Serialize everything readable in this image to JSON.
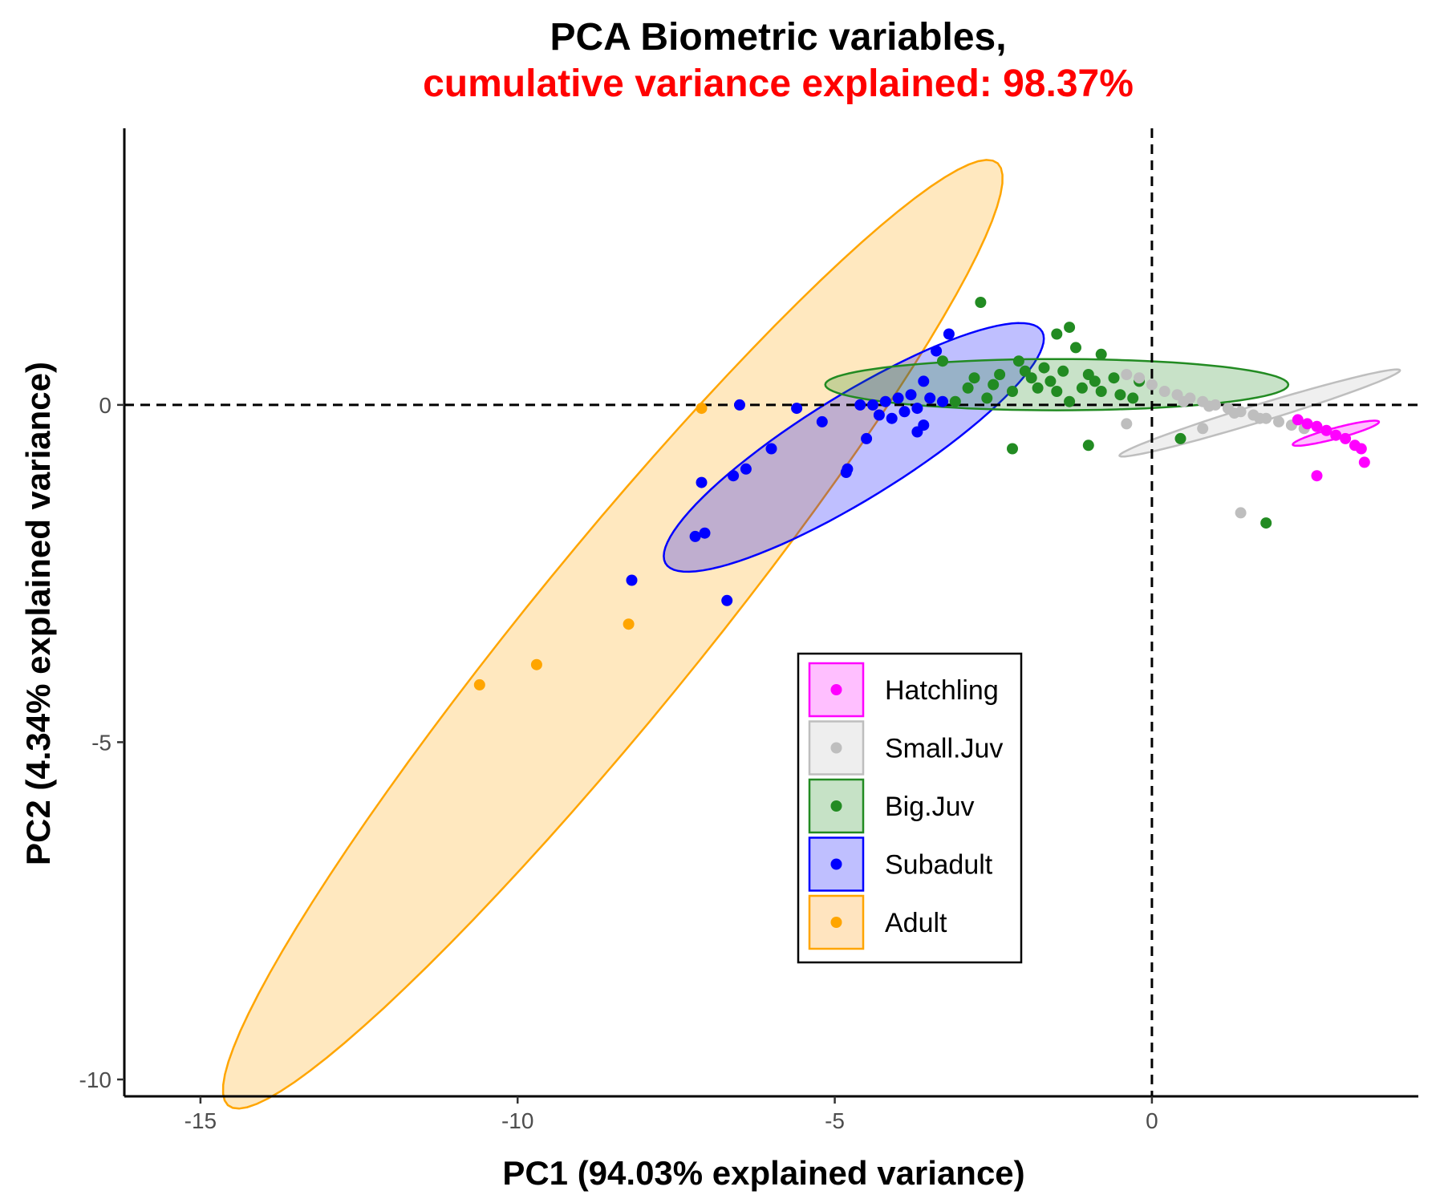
{
  "chart_data": {
    "type": "scatter",
    "title": "PCA Biometric variables,",
    "subtitle": "cumulative variance explained: 98.37%",
    "title_color": "#000000",
    "subtitle_color": "#ff0000",
    "xlabel": "PC1 (94.03% explained variance)",
    "ylabel": "PC2 (4.34% explained variance)",
    "xlim": [
      -16.2,
      4.2
    ],
    "ylim": [
      -10.25,
      4.1
    ],
    "x_ticks": [
      {
        "value": -15,
        "label": "-15"
      },
      {
        "value": -10,
        "label": "-10"
      },
      {
        "value": -5,
        "label": "-5"
      },
      {
        "value": 0,
        "label": "0"
      }
    ],
    "y_ticks": [
      {
        "value": 0,
        "label": "0"
      },
      {
        "value": -5,
        "label": "-5"
      },
      {
        "value": -10,
        "label": "-10"
      }
    ],
    "reference_lines": {
      "x": 0,
      "y": 0,
      "style": "dashed"
    },
    "grid": false,
    "legend_position": "center-right",
    "series": [
      {
        "name": "Hatchling",
        "color": "#ff00ff",
        "fill": "#ffbfff",
        "ellipse": {
          "cx": 2.9,
          "cy": -0.42,
          "rx": 0.7,
          "ry": 0.08,
          "angle_deg": 14
        },
        "points": [
          [
            2.3,
            -0.22
          ],
          [
            2.45,
            -0.28
          ],
          [
            2.6,
            -0.32
          ],
          [
            2.75,
            -0.38
          ],
          [
            2.9,
            -0.45
          ],
          [
            3.05,
            -0.5
          ],
          [
            3.2,
            -0.6
          ],
          [
            3.3,
            -0.65
          ],
          [
            3.35,
            -0.85
          ],
          [
            2.6,
            -1.05
          ]
        ]
      },
      {
        "name": "Small.Juv",
        "color": "#bebebe",
        "fill": "#eeeeee",
        "ellipse": {
          "cx": 1.7,
          "cy": -0.12,
          "rx": 2.3,
          "ry": 0.13,
          "angle_deg": 16
        },
        "points": [
          [
            -0.4,
            0.45
          ],
          [
            -0.2,
            0.4
          ],
          [
            0,
            0.3
          ],
          [
            0.2,
            0.2
          ],
          [
            0.4,
            0.15
          ],
          [
            0.6,
            0.1
          ],
          [
            0.8,
            0.05
          ],
          [
            1,
            0
          ],
          [
            1.2,
            -0.05
          ],
          [
            1.4,
            -0.1
          ],
          [
            1.6,
            -0.15
          ],
          [
            1.8,
            -0.2
          ],
          [
            2,
            -0.25
          ],
          [
            2.2,
            -0.3
          ],
          [
            2.4,
            -0.35
          ],
          [
            0.5,
            0.05
          ],
          [
            0.9,
            -0.02
          ],
          [
            1.3,
            -0.12
          ],
          [
            1.7,
            -0.2
          ],
          [
            -0.4,
            -0.28
          ],
          [
            0.8,
            -0.35
          ],
          [
            1.4,
            -1.6
          ]
        ]
      },
      {
        "name": "Big.Juv",
        "color": "#228b22",
        "fill": "#c6e2c6",
        "ellipse": {
          "cx": -1.5,
          "cy": 0.3,
          "rx": 3.65,
          "ry": 0.38,
          "angle_deg": 0
        },
        "points": [
          [
            -2.7,
            1.52
          ],
          [
            -1.3,
            1.15
          ],
          [
            -1.5,
            1.05
          ],
          [
            -1.2,
            0.85
          ],
          [
            -0.8,
            0.75
          ],
          [
            -2.1,
            0.65
          ],
          [
            -3.3,
            0.65
          ],
          [
            -2.8,
            0.4
          ],
          [
            -2.4,
            0.45
          ],
          [
            -2.0,
            0.5
          ],
          [
            -1.7,
            0.55
          ],
          [
            -1.4,
            0.5
          ],
          [
            -1.0,
            0.45
          ],
          [
            -0.6,
            0.4
          ],
          [
            -0.2,
            0.35
          ],
          [
            -2.9,
            0.25
          ],
          [
            -2.5,
            0.3
          ],
          [
            -2.2,
            0.2
          ],
          [
            -1.8,
            0.25
          ],
          [
            -1.5,
            0.2
          ],
          [
            -1.1,
            0.25
          ],
          [
            -0.8,
            0.2
          ],
          [
            -0.5,
            0.15
          ],
          [
            -1.9,
            0.4
          ],
          [
            -1.6,
            0.35
          ],
          [
            -0.9,
            0.35
          ],
          [
            -3.1,
            0.05
          ],
          [
            -2.6,
            0.1
          ],
          [
            -1.3,
            0.05
          ],
          [
            -0.3,
            0.1
          ],
          [
            -2.2,
            -0.65
          ],
          [
            -1.0,
            -0.6
          ],
          [
            0.45,
            -0.5
          ],
          [
            1.8,
            -1.75
          ]
        ]
      },
      {
        "name": "Subadult",
        "color": "#0000ff",
        "fill": "#bfbfff",
        "ellipse": {
          "cx": -4.7,
          "cy": -0.63,
          "rx": 3.43,
          "ry": 0.78,
          "angle_deg": 30
        },
        "points": [
          [
            -3.2,
            1.05
          ],
          [
            -3.4,
            0.8
          ],
          [
            -3.6,
            0.35
          ],
          [
            -3.8,
            0.15
          ],
          [
            -4.0,
            0.1
          ],
          [
            -4.2,
            0.05
          ],
          [
            -4.4,
            0
          ],
          [
            -4.6,
            0
          ],
          [
            -3.7,
            -0.05
          ],
          [
            -3.9,
            -0.1
          ],
          [
            -4.1,
            -0.2
          ],
          [
            -4.3,
            -0.15
          ],
          [
            -3.5,
            0.1
          ],
          [
            -3.3,
            0.05
          ],
          [
            -3.6,
            -0.3
          ],
          [
            -3.7,
            -0.4
          ],
          [
            -4.5,
            -0.5
          ],
          [
            -4.8,
            -0.95
          ],
          [
            -4.82,
            -1.0
          ],
          [
            -5.2,
            -0.25
          ],
          [
            -5.6,
            -0.05
          ],
          [
            -6.4,
            -0.95
          ],
          [
            -7.1,
            -1.15
          ],
          [
            -7.05,
            -1.9
          ],
          [
            -7.2,
            -1.95
          ],
          [
            -6.6,
            -1.05
          ],
          [
            -6.0,
            -0.65
          ],
          [
            -8.2,
            -2.6
          ],
          [
            -6.7,
            -2.9
          ],
          [
            -6.5,
            0
          ]
        ]
      },
      {
        "name": "Adult",
        "color": "#ffa500",
        "fill": "#ffe4bf",
        "ellipse": {
          "cx": -8.5,
          "cy": -3.4,
          "rx": 9.25,
          "ry": 1.29,
          "angle_deg": 49
        },
        "points": [
          [
            -7.1,
            -0.05
          ],
          [
            -8.25,
            -3.25
          ],
          [
            -9.7,
            -3.85
          ],
          [
            -10.6,
            -4.15
          ]
        ]
      }
    ]
  }
}
